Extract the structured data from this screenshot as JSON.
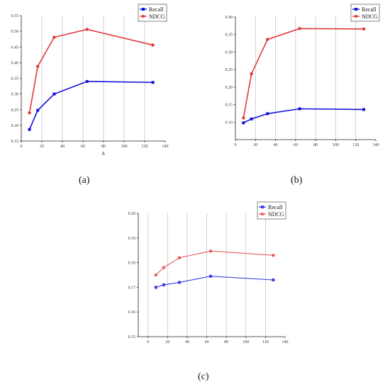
{
  "captions": [
    "(a)",
    "(b)",
    "(c)"
  ],
  "chart_data": [
    {
      "type": "line",
      "xlabel": "A",
      "ylabel": "",
      "xlim": [
        0,
        140
      ],
      "ylim": [
        0.15,
        0.55
      ],
      "x_ticks": [
        0,
        20,
        40,
        60,
        80,
        100,
        120,
        140
      ],
      "y_ticks": [
        0.15,
        0.2,
        0.25,
        0.3,
        0.35,
        0.4,
        0.45,
        0.5,
        0.55
      ],
      "y_tick_decimals": 2,
      "grid": "vertical",
      "legend": "top-right",
      "series": [
        {
          "name": "Recall",
          "color": "#1010e0",
          "marker": "square",
          "x": [
            8,
            16,
            32,
            64,
            128
          ],
          "y": [
            0.187,
            0.248,
            0.3,
            0.34,
            0.337
          ]
        },
        {
          "name": "NDCG",
          "color": "#e03a3a",
          "marker": "circle",
          "x": [
            8,
            16,
            32,
            64,
            128
          ],
          "y": [
            0.24,
            0.388,
            0.481,
            0.506,
            0.456
          ]
        }
      ]
    },
    {
      "type": "line",
      "xlabel": "",
      "ylabel": "",
      "xlim": [
        0,
        140
      ],
      "ylim": [
        0.05,
        0.4
      ],
      "x_ticks": [
        0,
        20,
        40,
        60,
        80,
        100,
        120,
        140
      ],
      "y_ticks": [
        0.1,
        0.15,
        0.2,
        0.25,
        0.3,
        0.35,
        0.4
      ],
      "y_tick_decimals": 2,
      "grid": "vertical",
      "legend": "top-right",
      "series": [
        {
          "name": "Recall",
          "color": "#1010e0",
          "marker": "square",
          "x": [
            8,
            16,
            32,
            64,
            128
          ],
          "y": [
            0.098,
            0.109,
            0.124,
            0.138,
            0.136
          ]
        },
        {
          "name": "NDCG",
          "color": "#e03a3a",
          "marker": "circle",
          "x": [
            8,
            16,
            32,
            64,
            128
          ],
          "y": [
            0.112,
            0.238,
            0.336,
            0.367,
            0.366
          ]
        }
      ]
    },
    {
      "type": "line",
      "xlabel": "",
      "ylabel": "",
      "xlim": [
        -10,
        140
      ],
      "ylim": [
        0.15,
        0.2
      ],
      "x_ticks": [
        0,
        20,
        40,
        60,
        80,
        100,
        120,
        140
      ],
      "y_ticks": [
        0.15,
        0.16,
        0.17,
        0.18,
        0.19,
        0.2
      ],
      "y_tick_decimals": 2,
      "grid": "vertical",
      "legend": "top-right",
      "series": [
        {
          "name": "Recall",
          "color": "#3a3ae6",
          "marker": "square",
          "x": [
            8,
            16,
            32,
            64,
            128
          ],
          "y": [
            0.17,
            0.171,
            0.172,
            0.1745,
            0.173
          ]
        },
        {
          "name": "NDCG",
          "color": "#e85a5a",
          "marker": "circle",
          "x": [
            8,
            16,
            32,
            64,
            128
          ],
          "y": [
            0.175,
            0.178,
            0.182,
            0.1847,
            0.183
          ]
        }
      ]
    }
  ]
}
